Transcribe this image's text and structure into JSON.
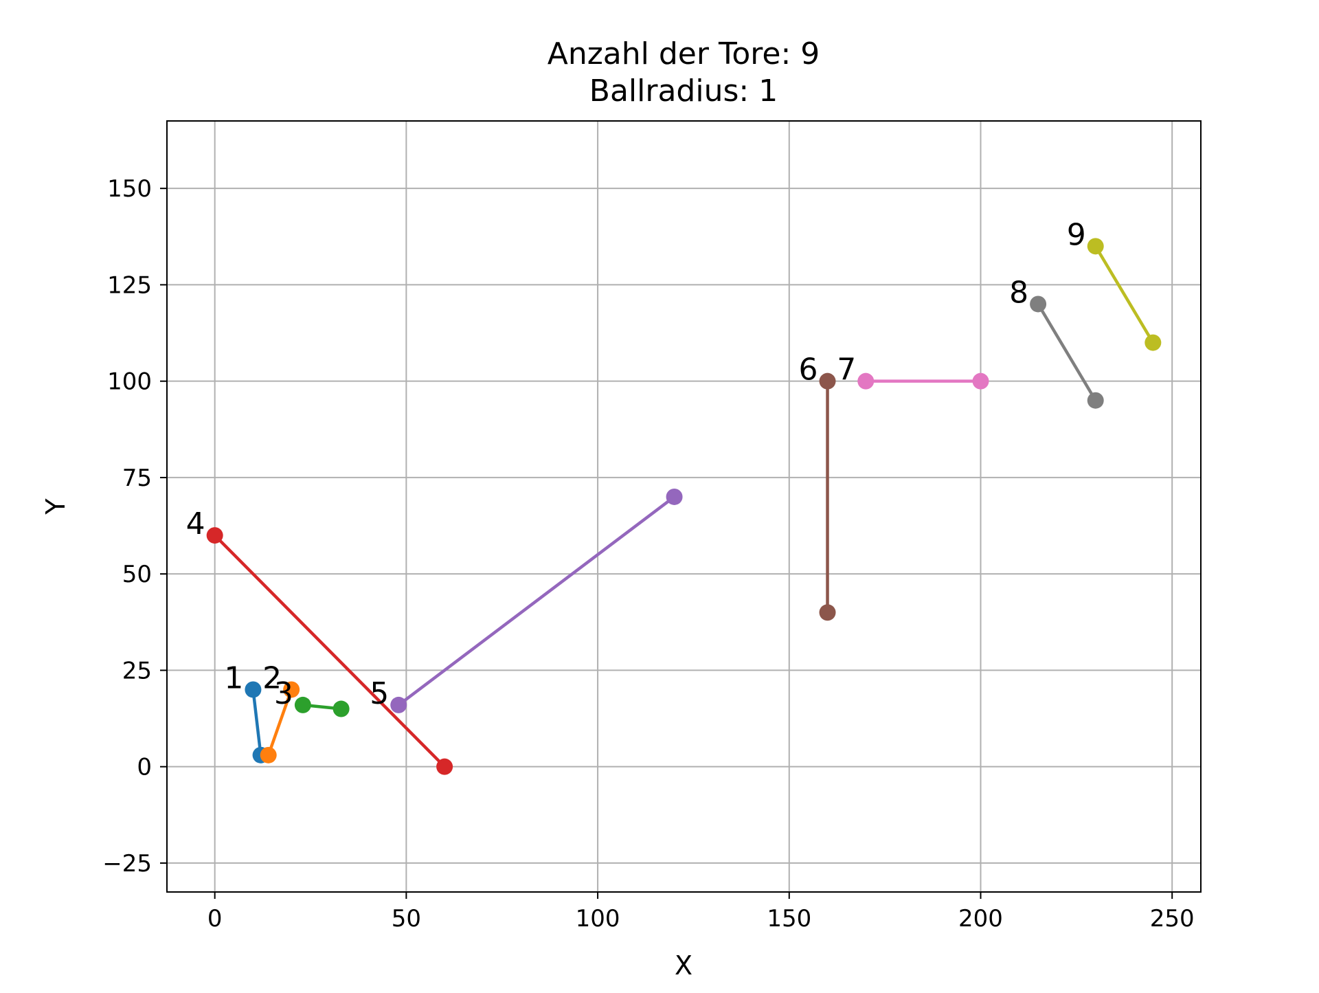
{
  "chart_data": {
    "type": "line",
    "title_lines": [
      "Anzahl der Tore: 9",
      "Ballradius: 1"
    ],
    "xlabel": "X",
    "ylabel": "Y",
    "xlim": [
      -12.5,
      257.5
    ],
    "ylim": [
      -32.5,
      167.5
    ],
    "xticks": [
      0,
      50,
      100,
      150,
      200,
      250
    ],
    "yticks": [
      -25,
      0,
      25,
      50,
      75,
      100,
      125,
      150
    ],
    "grid": true,
    "legend": "none",
    "series": [
      {
        "label": "1",
        "color": "#1f77b4",
        "points": [
          [
            10,
            20
          ],
          [
            12,
            3
          ]
        ]
      },
      {
        "label": "2",
        "color": "#ff7f0e",
        "points": [
          [
            20,
            20
          ],
          [
            14,
            3
          ]
        ]
      },
      {
        "label": "3",
        "color": "#2ca02c",
        "points": [
          [
            23,
            16
          ],
          [
            33,
            15
          ]
        ]
      },
      {
        "label": "4",
        "color": "#d62728",
        "points": [
          [
            0,
            60
          ],
          [
            60,
            0
          ]
        ]
      },
      {
        "label": "5",
        "color": "#9467bd",
        "points": [
          [
            48,
            16
          ],
          [
            120,
            70
          ]
        ]
      },
      {
        "label": "6",
        "color": "#8c564b",
        "points": [
          [
            160,
            100
          ],
          [
            160,
            40
          ]
        ]
      },
      {
        "label": "7",
        "color": "#e377c2",
        "points": [
          [
            170,
            100
          ],
          [
            200,
            100
          ]
        ]
      },
      {
        "label": "8",
        "color": "#7f7f7f",
        "points": [
          [
            215,
            120
          ],
          [
            230,
            95
          ]
        ]
      },
      {
        "label": "9",
        "color": "#bcbd22",
        "points": [
          [
            230,
            135
          ],
          [
            245,
            110
          ]
        ]
      }
    ]
  }
}
